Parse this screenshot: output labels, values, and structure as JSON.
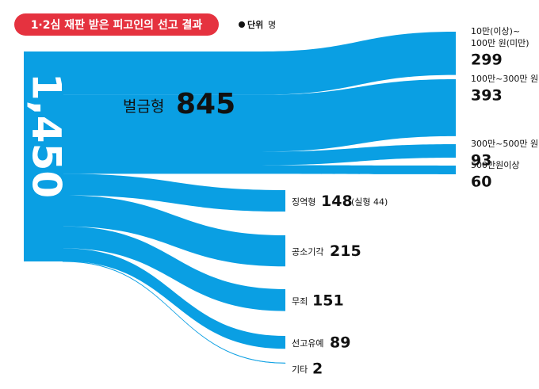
{
  "chart_data": {
    "type": "sankey",
    "title": "1·2심 재판 받은 피고인의 선고 결과",
    "unit": {
      "bold": "단위",
      "text": "명"
    },
    "color": "#0a9fe3",
    "total": {
      "value": 1450,
      "label": "1,450"
    },
    "nodes": [
      {
        "name": "벌금형",
        "value": 845,
        "children": [
          {
            "name": [
              "10만(이상)~",
              "100만 원(미만)"
            ],
            "value": 299
          },
          {
            "name": [
              "100만~300만 원"
            ],
            "value": 393
          },
          {
            "name": [
              "300만~500만 원"
            ],
            "value": 93
          },
          {
            "name": [
              "500만원이상"
            ],
            "value": 60
          }
        ]
      },
      {
        "name": "징역형",
        "value": 148,
        "note": "(실형 44)"
      },
      {
        "name": "공소기각",
        "value": 215
      },
      {
        "name": "무죄",
        "value": 151
      },
      {
        "name": "선고유예",
        "value": 89
      },
      {
        "name": "기타",
        "value": 2
      }
    ]
  }
}
